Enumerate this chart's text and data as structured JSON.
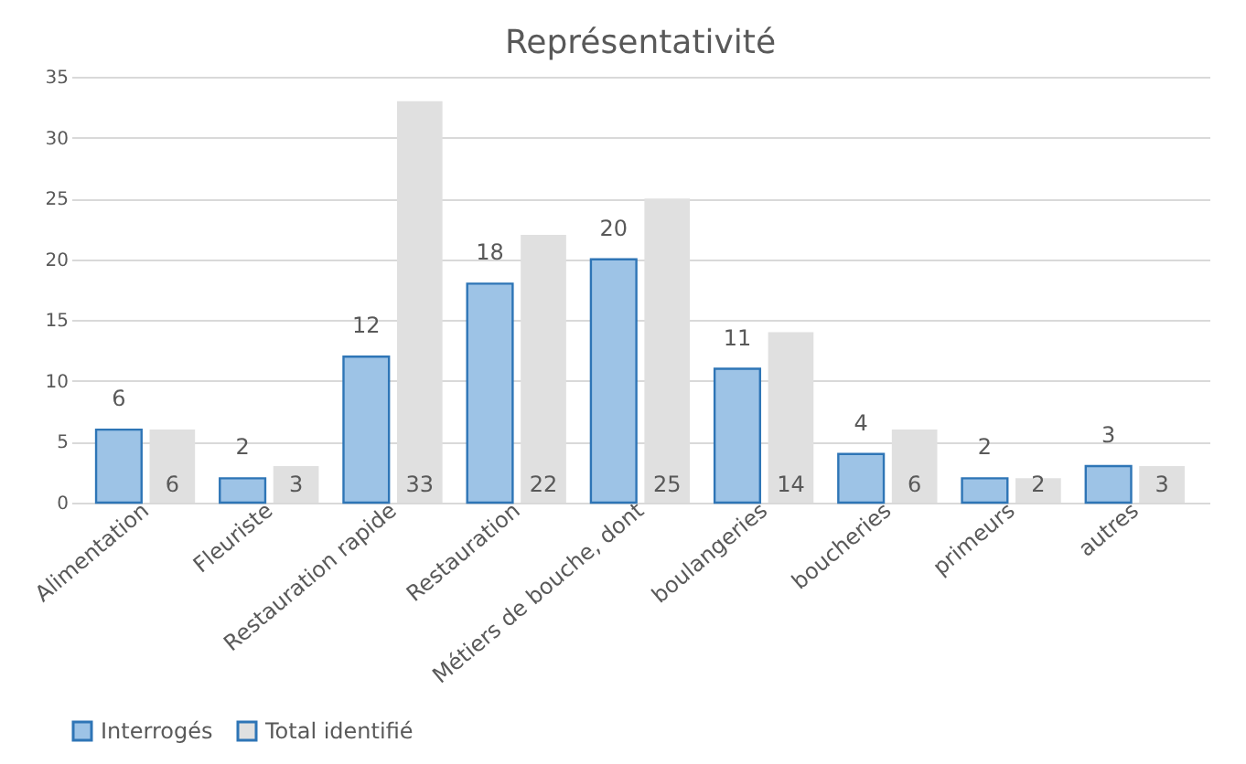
{
  "chart_data": {
    "type": "bar",
    "title": "Représentativité",
    "categories": [
      "Alimentation",
      "Fleuriste",
      "Restauration rapide",
      "Restauration",
      "Métiers de bouche, dont",
      "boulangeries",
      "boucheries",
      "primeurs",
      "autres"
    ],
    "series": [
      {
        "name": "Interrogés",
        "color": "#9dc3e6",
        "values": [
          6,
          2,
          12,
          18,
          20,
          11,
          4,
          2,
          3
        ]
      },
      {
        "name": "Total identifié",
        "color": "#e0e0e0",
        "values": [
          6,
          3,
          33,
          22,
          25,
          14,
          6,
          2,
          3
        ]
      }
    ],
    "ylim": [
      0,
      35
    ],
    "yticks": [
      0,
      5,
      10,
      15,
      20,
      25,
      30,
      35
    ],
    "grid": "y",
    "legend": "bottom",
    "data_labels": true
  }
}
